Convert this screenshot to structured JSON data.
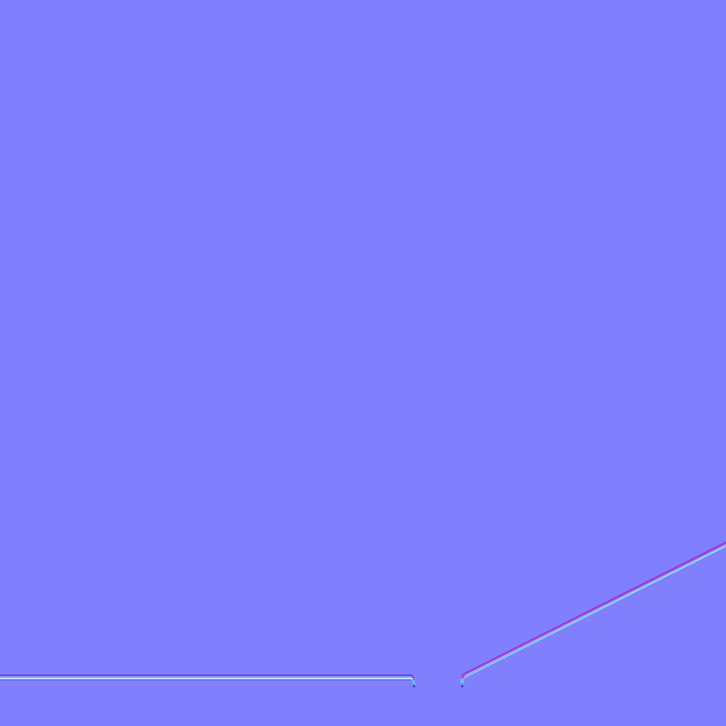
{
  "texture": {
    "kind": "normal-map",
    "colors": {
      "base": "#8080ff",
      "ridge_upper": "#a020e0",
      "ridge_highlight": "#c040d0",
      "ridge_lower": "#60d0ff",
      "ridge_pale": "#c8f0ff",
      "ridge_mid": "#7060ff"
    }
  }
}
